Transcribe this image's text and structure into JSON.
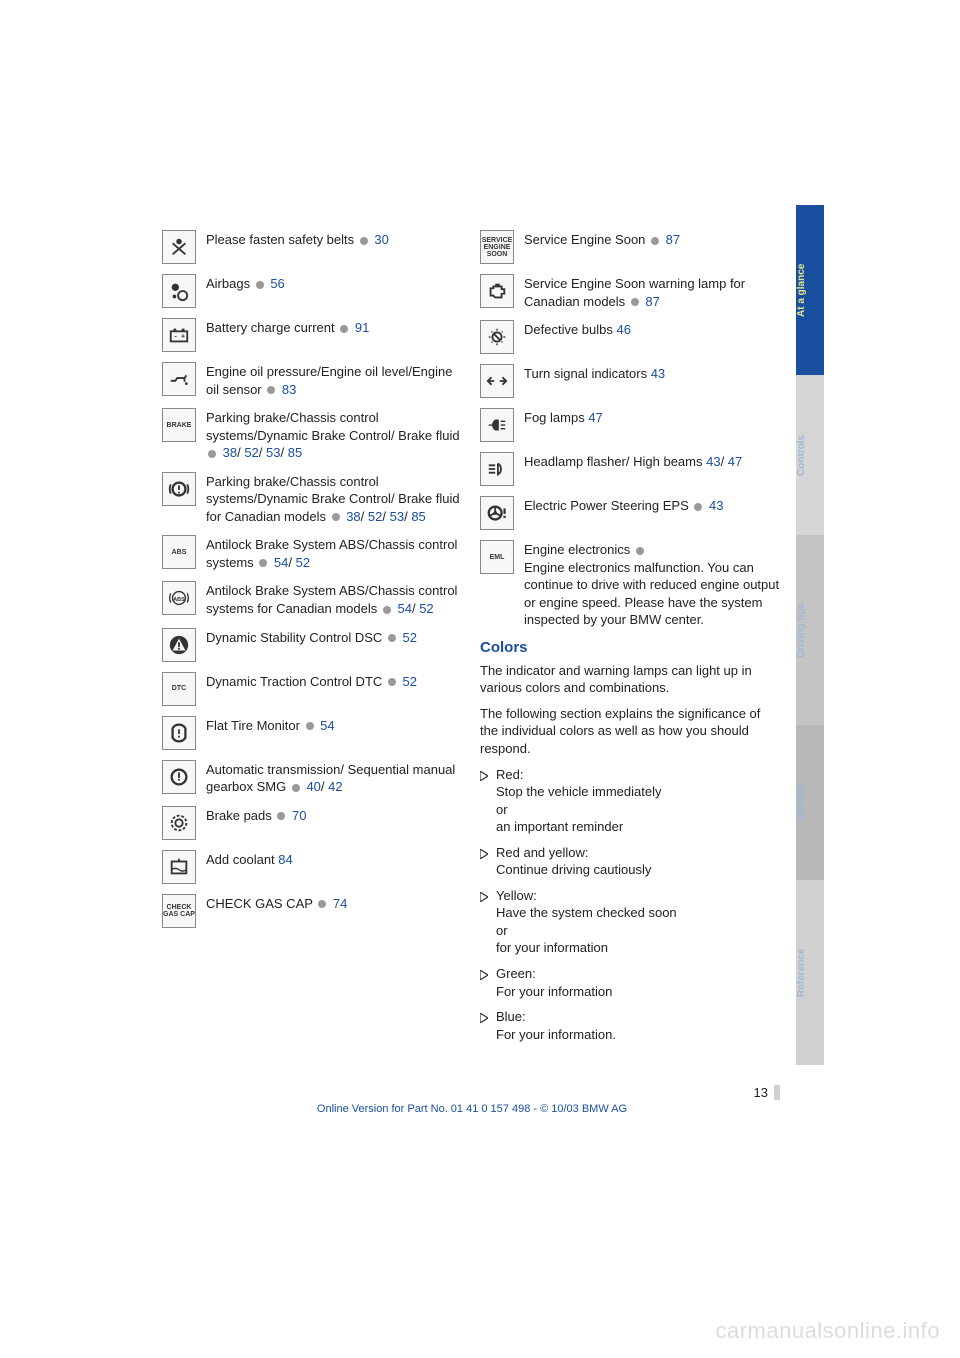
{
  "left_column": [
    {
      "icon": "belt",
      "label": "",
      "parts": [
        "Please fasten safety belts"
      ],
      "dot": true,
      "links": [
        "30"
      ]
    },
    {
      "icon": "airbag",
      "label": "",
      "parts": [
        "Airbags"
      ],
      "dot": true,
      "links": [
        "56"
      ]
    },
    {
      "icon": "battery",
      "label": "",
      "parts": [
        "Battery charge current"
      ],
      "dot": true,
      "links": [
        "91"
      ]
    },
    {
      "icon": "oil",
      "label": "",
      "parts": [
        "Engine oil pressure/Engine oil level/Engine oil sensor"
      ],
      "dot": true,
      "links": [
        "83"
      ]
    },
    {
      "icon": "text",
      "label": "BRAKE",
      "parts": [
        "Parking brake/Chassis control systems/Dynamic Brake Control/ Brake fluid"
      ],
      "dot": true,
      "links": [
        "38",
        "52",
        "53",
        "85"
      ]
    },
    {
      "icon": "excl",
      "label": "",
      "parts": [
        "Parking brake/Chassis control systems/Dynamic Brake Control/ Brake fluid for Canadian models"
      ],
      "dot": true,
      "links": [
        "38",
        "52",
        "53",
        "85"
      ]
    },
    {
      "icon": "text",
      "label": "ABS",
      "parts": [
        "Antilock Brake System ABS/Chassis control systems"
      ],
      "dot": true,
      "links": [
        "54",
        "52"
      ]
    },
    {
      "icon": "abs",
      "label": "",
      "parts": [
        "Antilock Brake System ABS/Chassis control systems for Canadian models"
      ],
      "dot": true,
      "links": [
        "54",
        "52"
      ]
    },
    {
      "icon": "triangle",
      "label": "",
      "parts": [
        "Dynamic Stability Control DSC"
      ],
      "dot": true,
      "links": [
        "52"
      ]
    },
    {
      "icon": "text",
      "label": "DTC",
      "parts": [
        "Dynamic Traction Control DTC"
      ],
      "dot": true,
      "links": [
        "52"
      ]
    },
    {
      "icon": "flat",
      "label": "",
      "parts": [
        "Flat Tire Monitor"
      ],
      "dot": true,
      "links": [
        "54"
      ]
    },
    {
      "icon": "gear",
      "label": "",
      "parts": [
        "Automatic transmission/ Sequential manual gearbox SMG"
      ],
      "dot": true,
      "links": [
        "40",
        "42"
      ]
    },
    {
      "icon": "pads",
      "label": "",
      "parts": [
        "Brake pads"
      ],
      "dot": true,
      "links": [
        "70"
      ]
    },
    {
      "icon": "coolant",
      "label": "",
      "parts": [
        "Add coolant"
      ],
      "dot": false,
      "links": [
        "84"
      ]
    },
    {
      "icon": "text",
      "label": "CHECK GAS CAP",
      "parts": [
        "CHECK GAS CAP"
      ],
      "dot": true,
      "links": [
        "74"
      ]
    }
  ],
  "right_column": [
    {
      "icon": "text",
      "label": "SERVICE ENGINE SOON",
      "parts": [
        "Service Engine Soon"
      ],
      "dot": true,
      "links": [
        "87"
      ]
    },
    {
      "icon": "engine",
      "label": "",
      "parts": [
        "Service Engine Soon warning lamp for Canadian models"
      ],
      "dot": true,
      "links": [
        "87"
      ]
    },
    {
      "icon": "bulb",
      "label": "",
      "parts": [
        "Defective bulbs"
      ],
      "dot": false,
      "links": [
        "46"
      ]
    },
    {
      "icon": "arrows",
      "label": "",
      "parts": [
        "Turn signal indicators"
      ],
      "dot": false,
      "links": [
        "43"
      ]
    },
    {
      "icon": "fog",
      "label": "",
      "parts": [
        "Fog lamps"
      ],
      "dot": false,
      "links": [
        "47"
      ]
    },
    {
      "icon": "beam",
      "label": "",
      "parts": [
        "Headlamp flasher/ High beams"
      ],
      "dot": false,
      "links": [
        "43",
        "47"
      ]
    },
    {
      "icon": "eps",
      "label": "",
      "parts": [
        "Electric Power Steering EPS"
      ],
      "dot": true,
      "links": [
        "43"
      ]
    },
    {
      "icon": "text",
      "label": "EML",
      "parts": [
        "Engine electronics"
      ],
      "dot": true,
      "links": [],
      "after": "Engine electronics malfunction. You can continue to drive with reduced engine output or engine speed. Please have the system inspected by your BMW center."
    }
  ],
  "colors_heading": "Colors",
  "para1": "The indicator and warning lamps can light up in various colors and combinations.",
  "para2": "The following section explains the significance of the individual colors as well as how you should respond.",
  "bullets": [
    "Red:\nStop the vehicle immediately\nor\nan important reminder",
    "Red and yellow:\nContinue driving cautiously",
    "Yellow:\nHave the system checked soon\nor\nfor your information",
    "Green:\nFor your information",
    "Blue:\nFor your information."
  ],
  "tabs": [
    "At a glance",
    "Controls",
    "Driving tips",
    "Mobility",
    "Reference"
  ],
  "page_number": "13",
  "footer": "Online Version for Part No. 01 41 0 157 498 - © 10/03 BMW AG",
  "watermark": "carmanualsonline.info"
}
